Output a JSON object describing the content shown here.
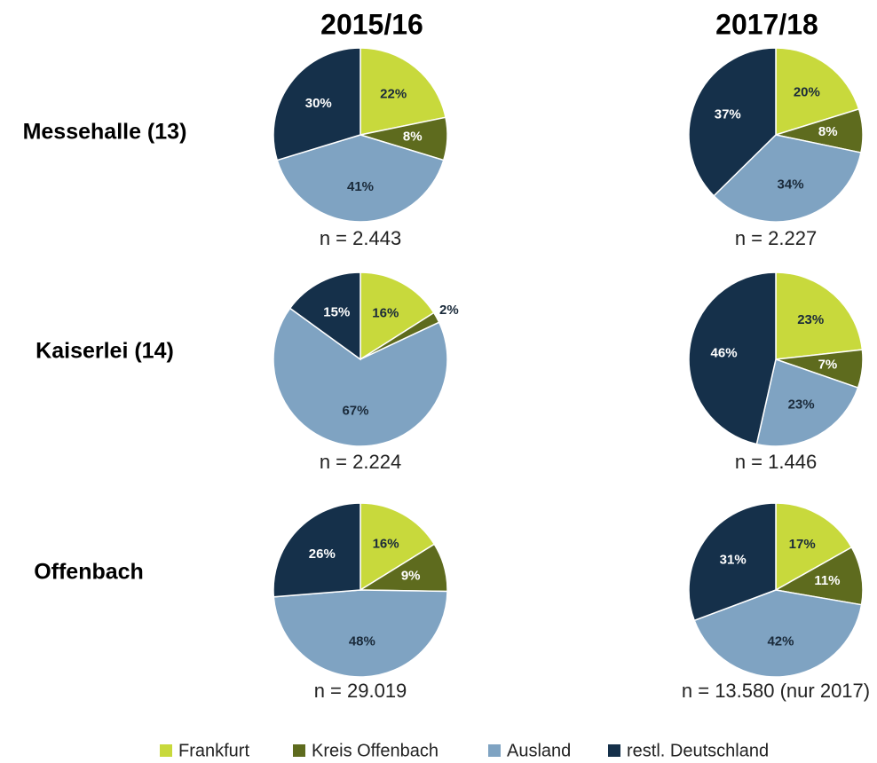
{
  "columns": [
    "2015/16",
    "2017/18"
  ],
  "rows": [
    "Messehalle (13)",
    "Kaiserlei (14)",
    "Offenbach"
  ],
  "legend": {
    "labels": [
      "Frankfurt",
      "Kreis Offenbach",
      "Ausland",
      "restl. Deutschland"
    ],
    "colors": [
      "#c8d93c",
      "#5e6b1e",
      "#7fa3c2",
      "#15304a"
    ]
  },
  "chart_data": [
    {
      "type": "pie",
      "subtitle": "n = 2.443",
      "values": [
        22,
        8,
        41,
        30
      ],
      "value_labels": [
        "22%",
        "8%",
        "41%",
        "30%"
      ]
    },
    {
      "type": "pie",
      "subtitle": "n = 2.227",
      "values": [
        20,
        8,
        34,
        37
      ],
      "value_labels": [
        "20%",
        "8%",
        "34%",
        "37%"
      ]
    },
    {
      "type": "pie",
      "subtitle": "n = 2.224",
      "values": [
        16,
        2,
        67,
        15
      ],
      "value_labels": [
        "16%",
        "2%",
        "67%",
        "15%"
      ]
    },
    {
      "type": "pie",
      "subtitle": "n = 1.446",
      "values": [
        23,
        7,
        23,
        46
      ],
      "value_labels": [
        "23%",
        "7%",
        "23%",
        "46%"
      ]
    },
    {
      "type": "pie",
      "subtitle": "n = 29.019",
      "values": [
        16,
        9,
        48,
        26
      ],
      "value_labels": [
        "16%",
        "9%",
        "48%",
        "26%"
      ]
    },
    {
      "type": "pie",
      "subtitle": "n = 13.580 (nur 2017)",
      "values": [
        17,
        11,
        42,
        31
      ],
      "value_labels": [
        "17%",
        "11%",
        "42%",
        "31%"
      ]
    }
  ]
}
